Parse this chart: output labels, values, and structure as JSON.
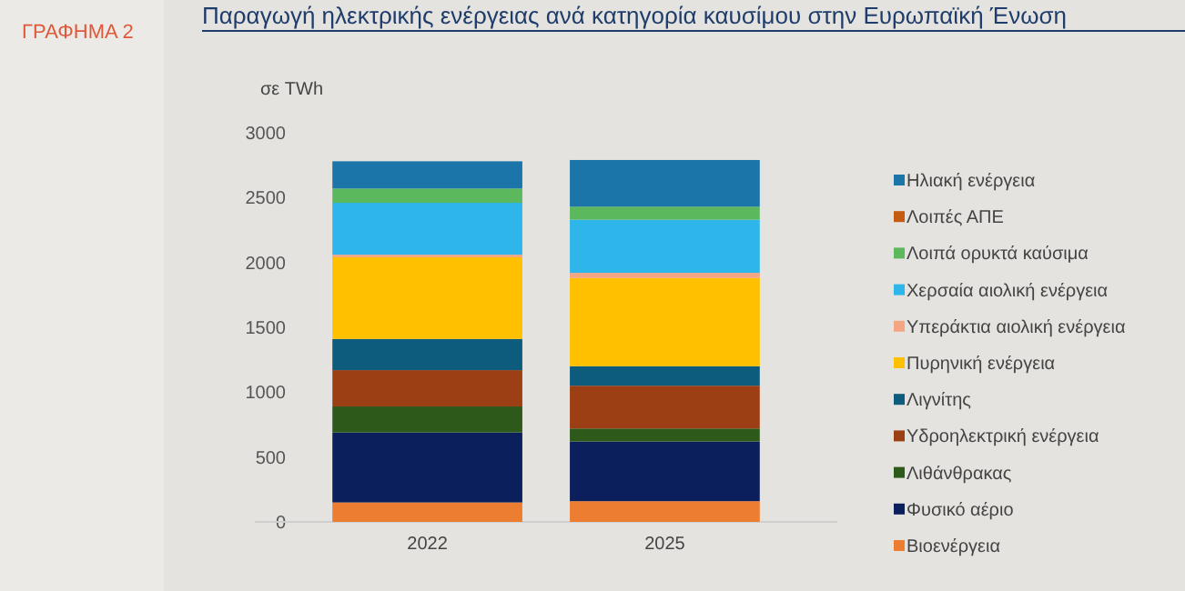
{
  "chart_data": {
    "type": "bar",
    "stacked": true,
    "title": "Παραγωγή ηλεκτρικής ενέργειας ανά κατηγορία καυσίμου στην Ευρωπαϊκή Ένωση",
    "ylabel": "σε TWh",
    "annotations": [
      "ΓΡΑΦΗΜΑ 2"
    ],
    "categories": [
      "2022",
      "2025"
    ],
    "ylim": [
      0,
      3000
    ],
    "yticks": [
      0,
      500,
      1000,
      1500,
      2000,
      2500,
      3000
    ],
    "legend": "right",
    "grid": false,
    "series": [
      {
        "name": "Βιοενέργεια",
        "color": "#ed7d31",
        "values": [
          150,
          160
        ]
      },
      {
        "name": "Φυσικό αέριο",
        "color": "#0b1f5c",
        "values": [
          540,
          460
        ]
      },
      {
        "name": "Λιθάνθρακας",
        "color": "#2d5a1b",
        "values": [
          200,
          100
        ]
      },
      {
        "name": "Υδροηλεκτρική ενέργεια",
        "color": "#9c3f14",
        "values": [
          280,
          330
        ]
      },
      {
        "name": "Λιγνίτης",
        "color": "#0d5b7d",
        "values": [
          240,
          150
        ]
      },
      {
        "name": "Πυρηνική ενέργεια",
        "color": "#ffc000",
        "values": [
          630,
          680
        ]
      },
      {
        "name": "Υπεράκτια αιολική ενέργεια",
        "color": "#f4a582",
        "values": [
          20,
          40
        ]
      },
      {
        "name": "Χερσαία αιολική ενέργεια",
        "color": "#2eb6ea",
        "values": [
          400,
          410
        ]
      },
      {
        "name": "Λοιπά ορυκτά καύσιμα",
        "color": "#5cb85c",
        "values": [
          110,
          100
        ]
      },
      {
        "name": "Λοιπές ΑΠΕ",
        "color": "#c55a11",
        "values": [
          null,
          null
        ]
      },
      {
        "name": "Ηλιακή ενέργεια",
        "color": "#1b75a8",
        "values": [
          210,
          360
        ]
      }
    ]
  }
}
